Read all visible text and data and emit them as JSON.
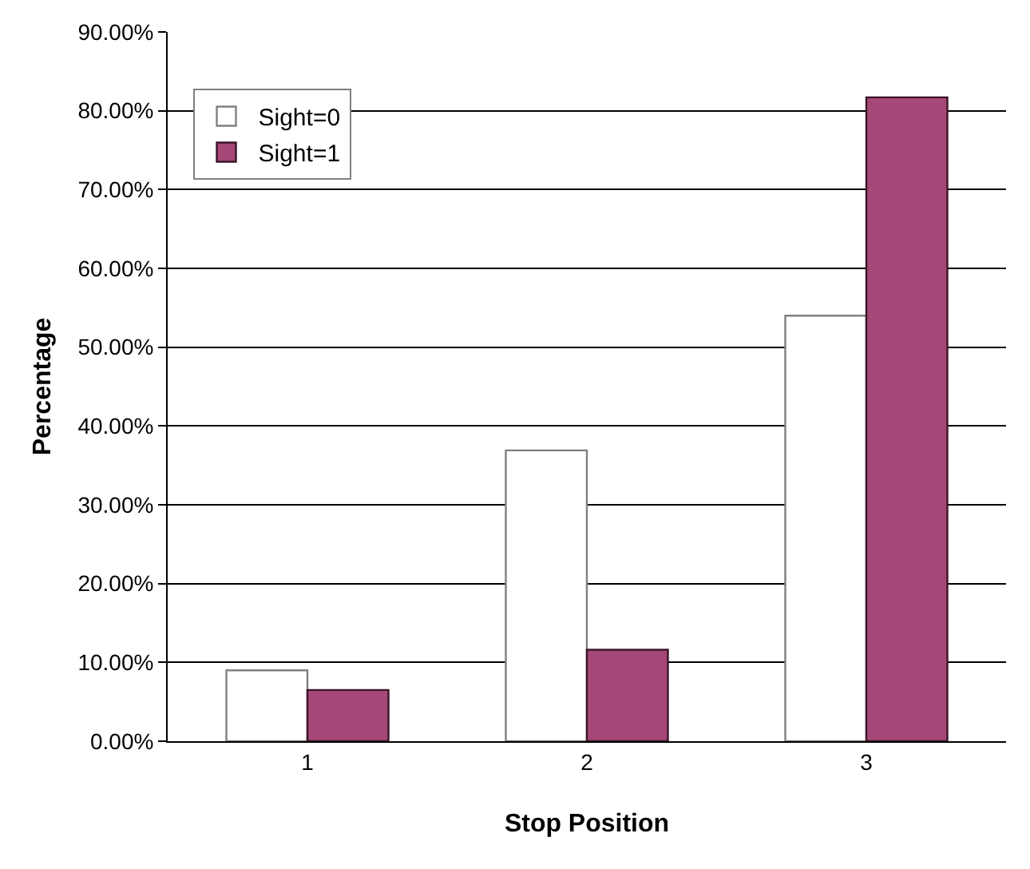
{
  "chart_data": {
    "type": "bar",
    "xlabel": "Stop Position",
    "ylabel": "Percentage",
    "categories": [
      "1",
      "2",
      "3"
    ],
    "series": [
      {
        "name": "Sight=0",
        "color": "#ffffff",
        "values": [
          9.0,
          36.9,
          54.0
        ]
      },
      {
        "name": "Sight=1",
        "color": "#a64877",
        "values": [
          6.5,
          11.6,
          81.7
        ]
      }
    ],
    "ylim": [
      0,
      90
    ],
    "yticks": [
      {
        "value": 0,
        "label": "0.00%"
      },
      {
        "value": 10,
        "label": "10.00%"
      },
      {
        "value": 20,
        "label": "20.00%"
      },
      {
        "value": 30,
        "label": "30.00%"
      },
      {
        "value": 40,
        "label": "40.00%"
      },
      {
        "value": 50,
        "label": "50.00%"
      },
      {
        "value": 60,
        "label": "60.00%"
      },
      {
        "value": 70,
        "label": "70.00%"
      },
      {
        "value": 80,
        "label": "80.00%"
      },
      {
        "value": 90,
        "label": "90.00%"
      }
    ],
    "grid": true,
    "legend": "top left"
  }
}
